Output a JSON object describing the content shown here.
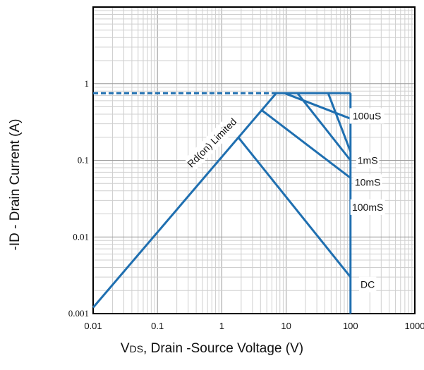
{
  "chart_data": {
    "type": "line",
    "title": "",
    "xlabel": {
      "prefix": "V",
      "sub": "DS",
      "rest": ", Drain -Source Voltage (V)"
    },
    "ylabel": "-ID - Drain Current (A)",
    "xscale": "log",
    "yscale": "log",
    "xlim": [
      0.01,
      1000
    ],
    "ylim": [
      0.001,
      10
    ],
    "grid": true,
    "x_ticks": [
      "0.01",
      "0.1",
      "1",
      "10",
      "100",
      "1000"
    ],
    "y_ticks": [
      "0.001",
      "0.01",
      "0.1",
      "1"
    ],
    "line_color": "#1f6fb0",
    "series": [
      {
        "name": "Rd(on) Limited",
        "points": [
          [
            0.01,
            0.0012
          ],
          [
            7,
            0.75
          ]
        ]
      },
      {
        "name": "100uS",
        "points": [
          [
            9.5,
            0.75
          ],
          [
            100,
            0.35
          ]
        ]
      },
      {
        "name": "1mS",
        "points": [
          [
            15,
            0.75
          ],
          [
            100,
            0.1
          ]
        ]
      },
      {
        "name": "10mS",
        "points": [
          [
            4.2,
            0.45
          ],
          [
            100,
            0.059
          ]
        ]
      },
      {
        "name": "100mS",
        "points": [
          [
            45,
            0.75
          ],
          [
            100,
            0.13
          ]
        ]
      },
      {
        "name": "DC",
        "points": [
          [
            1.8,
            0.2
          ],
          [
            100,
            0.003
          ]
        ]
      },
      {
        "name": "",
        "points": [
          [
            0.01,
            0.75
          ],
          [
            7,
            0.75
          ]
        ],
        "style": "dashed"
      },
      {
        "name": "",
        "points": [
          [
            7,
            0.75
          ],
          [
            100,
            0.75
          ]
        ]
      },
      {
        "name": "",
        "points": [
          [
            100,
            0.75
          ],
          [
            100,
            0.001
          ]
        ]
      }
    ],
    "annotations": [
      {
        "text": "100uS",
        "x": 180,
        "y": 0.38
      },
      {
        "text": "1mS",
        "x": 185,
        "y": 0.1
      },
      {
        "text": "10mS",
        "x": 185,
        "y": 0.052
      },
      {
        "text": "100mS",
        "x": 185,
        "y": 0.0245
      },
      {
        "text": "DC",
        "x": 185,
        "y": 0.0024
      },
      {
        "text": "Rd(on) Limited",
        "x": 0.7,
        "y": 0.17,
        "rotate": -45
      }
    ]
  }
}
